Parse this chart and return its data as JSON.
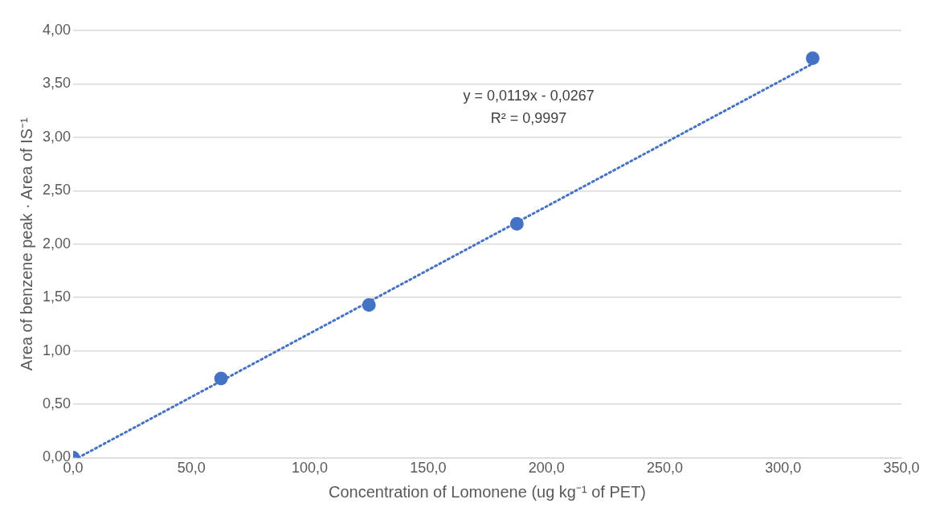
{
  "chart_data": {
    "type": "scatter",
    "xlabel": "Concentration of Lomonene (ug kg⁻¹ of PET)",
    "ylabel": "Area of benzene peak · Area of IS⁻¹",
    "x": [
      0,
      62.5,
      125,
      187.5,
      312.5
    ],
    "series": [
      {
        "type": "scatter",
        "color": "#4472c4",
        "values": [
          0,
          0.74,
          1.43,
          2.19,
          3.74
        ],
        "marker": "circle"
      },
      {
        "type": "line",
        "color": "#4472c4",
        "x": [
          2.2,
          312.5
        ],
        "values": [
          0,
          3.69
        ],
        "line_style": "dotted",
        "marker": "none"
      }
    ],
    "xlim": [
      0,
      350
    ],
    "xticks": [
      {
        "value": 0,
        "label": "0,0"
      },
      {
        "value": 50,
        "label": "50,0"
      },
      {
        "value": 100,
        "label": "100,0"
      },
      {
        "value": 150,
        "label": "150,0"
      },
      {
        "value": 200,
        "label": "200,0"
      },
      {
        "value": 250,
        "label": "250,0"
      },
      {
        "value": 300,
        "label": "300,0"
      },
      {
        "value": 350,
        "label": "350,0"
      }
    ],
    "ylim": [
      0,
      4
    ],
    "yticks": [
      {
        "value": 0,
        "label": "0,00"
      },
      {
        "value": 0.5,
        "label": "0,50"
      },
      {
        "value": 1,
        "label": "1,00"
      },
      {
        "value": 1.5,
        "label": "1,50"
      },
      {
        "value": 2,
        "label": "2,00"
      },
      {
        "value": 2.5,
        "label": "2,50"
      },
      {
        "value": 3,
        "label": "3,00"
      },
      {
        "value": 3.5,
        "label": "3,50"
      },
      {
        "value": 4,
        "label": "4,00"
      }
    ],
    "grid": "y",
    "legend": false,
    "annotations": [
      "y = 0,0119x - 0,0267",
      "R² = 0,9997"
    ]
  }
}
